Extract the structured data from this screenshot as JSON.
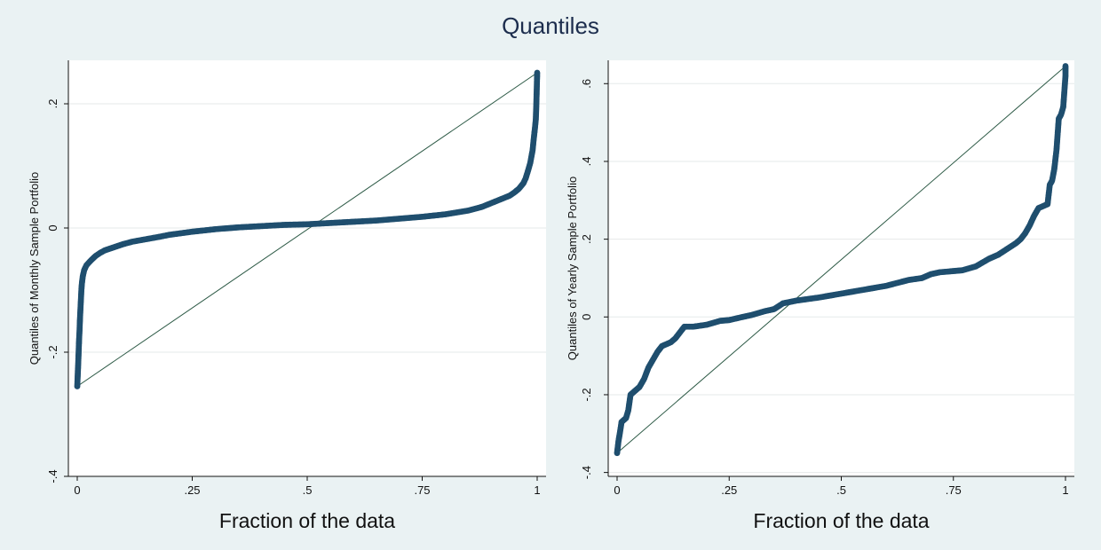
{
  "figure_title": "Quantiles",
  "colors": {
    "background": "#eaf2f3",
    "plot_bg": "#ffffff",
    "marker": "#1f4e6e",
    "ref_line": "#2d5a46",
    "grid": "#e6eaea"
  },
  "chart_data": [
    {
      "type": "scatter",
      "xlabel": "Fraction of the data",
      "ylabel": "Quantiles of Monthly Sample Portfolio",
      "xlim": [
        0,
        1
      ],
      "ylim": [
        -0.4,
        0.27
      ],
      "x_ticks": [
        0,
        0.25,
        0.5,
        0.75,
        1
      ],
      "x_tick_labels": [
        "0",
        ".25",
        ".5",
        ".75",
        "1"
      ],
      "y_ticks": [
        -0.4,
        -0.2,
        0,
        0.2
      ],
      "y_tick_labels": [
        "-.4",
        "-.2",
        "0",
        ".2"
      ],
      "reference_line": {
        "x": [
          0,
          1
        ],
        "y": [
          -0.255,
          0.25
        ]
      },
      "points": [
        [
          0,
          -0.255
        ],
        [
          0.002,
          -0.22
        ],
        [
          0.003,
          -0.2
        ],
        [
          0.004,
          -0.18
        ],
        [
          0.005,
          -0.165
        ],
        [
          0.006,
          -0.145
        ],
        [
          0.007,
          -0.13
        ],
        [
          0.008,
          -0.115
        ],
        [
          0.009,
          -0.1
        ],
        [
          0.01,
          -0.09
        ],
        [
          0.012,
          -0.078
        ],
        [
          0.015,
          -0.068
        ],
        [
          0.02,
          -0.06
        ],
        [
          0.03,
          -0.052
        ],
        [
          0.04,
          -0.045
        ],
        [
          0.05,
          -0.04
        ],
        [
          0.06,
          -0.036
        ],
        [
          0.08,
          -0.031
        ],
        [
          0.1,
          -0.026
        ],
        [
          0.12,
          -0.022
        ],
        [
          0.15,
          -0.018
        ],
        [
          0.18,
          -0.014
        ],
        [
          0.2,
          -0.011
        ],
        [
          0.25,
          -0.006
        ],
        [
          0.3,
          -0.002
        ],
        [
          0.35,
          0.001
        ],
        [
          0.4,
          0.003
        ],
        [
          0.45,
          0.005
        ],
        [
          0.5,
          0.006
        ],
        [
          0.55,
          0.008
        ],
        [
          0.6,
          0.01
        ],
        [
          0.65,
          0.012
        ],
        [
          0.7,
          0.015
        ],
        [
          0.75,
          0.018
        ],
        [
          0.8,
          0.022
        ],
        [
          0.85,
          0.028
        ],
        [
          0.88,
          0.034
        ],
        [
          0.9,
          0.04
        ],
        [
          0.92,
          0.046
        ],
        [
          0.94,
          0.052
        ],
        [
          0.95,
          0.057
        ],
        [
          0.96,
          0.063
        ],
        [
          0.97,
          0.072
        ],
        [
          0.975,
          0.08
        ],
        [
          0.98,
          0.092
        ],
        [
          0.985,
          0.105
        ],
        [
          0.99,
          0.125
        ],
        [
          0.992,
          0.14
        ],
        [
          0.995,
          0.16
        ],
        [
          0.997,
          0.175
        ],
        [
          0.998,
          0.195
        ],
        [
          1,
          0.25
        ]
      ]
    },
    {
      "type": "scatter",
      "xlabel": "Fraction of the data",
      "ylabel": "Quantiles of Yearly Sample Portfolio",
      "xlim": [
        0,
        1
      ],
      "ylim": [
        -0.41,
        0.66
      ],
      "x_ticks": [
        0,
        0.25,
        0.5,
        0.75,
        1
      ],
      "x_tick_labels": [
        "0",
        ".25",
        ".5",
        ".75",
        "1"
      ],
      "y_ticks": [
        -0.4,
        -0.2,
        0,
        0.2,
        0.4,
        0.6
      ],
      "y_tick_labels": [
        "-.4",
        "-.2",
        "0",
        ".2",
        ".4",
        ".6"
      ],
      "reference_line": {
        "x": [
          0,
          1
        ],
        "y": [
          -0.35,
          0.645
        ]
      },
      "points": [
        [
          0,
          -0.35
        ],
        [
          0.003,
          -0.32
        ],
        [
          0.006,
          -0.3
        ],
        [
          0.01,
          -0.27
        ],
        [
          0.015,
          -0.265
        ],
        [
          0.02,
          -0.26
        ],
        [
          0.025,
          -0.24
        ],
        [
          0.03,
          -0.2
        ],
        [
          0.04,
          -0.19
        ],
        [
          0.05,
          -0.18
        ],
        [
          0.06,
          -0.16
        ],
        [
          0.07,
          -0.13
        ],
        [
          0.08,
          -0.11
        ],
        [
          0.09,
          -0.09
        ],
        [
          0.1,
          -0.075
        ],
        [
          0.11,
          -0.07
        ],
        [
          0.12,
          -0.065
        ],
        [
          0.13,
          -0.055
        ],
        [
          0.14,
          -0.04
        ],
        [
          0.15,
          -0.025
        ],
        [
          0.17,
          -0.025
        ],
        [
          0.2,
          -0.02
        ],
        [
          0.23,
          -0.01
        ],
        [
          0.25,
          -0.008
        ],
        [
          0.28,
          0
        ],
        [
          0.3,
          0.005
        ],
        [
          0.33,
          0.015
        ],
        [
          0.35,
          0.02
        ],
        [
          0.37,
          0.035
        ],
        [
          0.4,
          0.042
        ],
        [
          0.45,
          0.05
        ],
        [
          0.5,
          0.06
        ],
        [
          0.55,
          0.07
        ],
        [
          0.6,
          0.08
        ],
        [
          0.65,
          0.095
        ],
        [
          0.68,
          0.1
        ],
        [
          0.7,
          0.11
        ],
        [
          0.72,
          0.115
        ],
        [
          0.75,
          0.118
        ],
        [
          0.77,
          0.12
        ],
        [
          0.8,
          0.13
        ],
        [
          0.83,
          0.15
        ],
        [
          0.85,
          0.16
        ],
        [
          0.87,
          0.175
        ],
        [
          0.89,
          0.19
        ],
        [
          0.9,
          0.2
        ],
        [
          0.91,
          0.215
        ],
        [
          0.92,
          0.235
        ],
        [
          0.93,
          0.26
        ],
        [
          0.94,
          0.28
        ],
        [
          0.95,
          0.285
        ],
        [
          0.96,
          0.29
        ],
        [
          0.965,
          0.34
        ],
        [
          0.97,
          0.35
        ],
        [
          0.975,
          0.38
        ],
        [
          0.98,
          0.43
        ],
        [
          0.985,
          0.51
        ],
        [
          0.99,
          0.52
        ],
        [
          0.995,
          0.54
        ],
        [
          1,
          0.62
        ],
        [
          1,
          0.645
        ]
      ]
    }
  ]
}
